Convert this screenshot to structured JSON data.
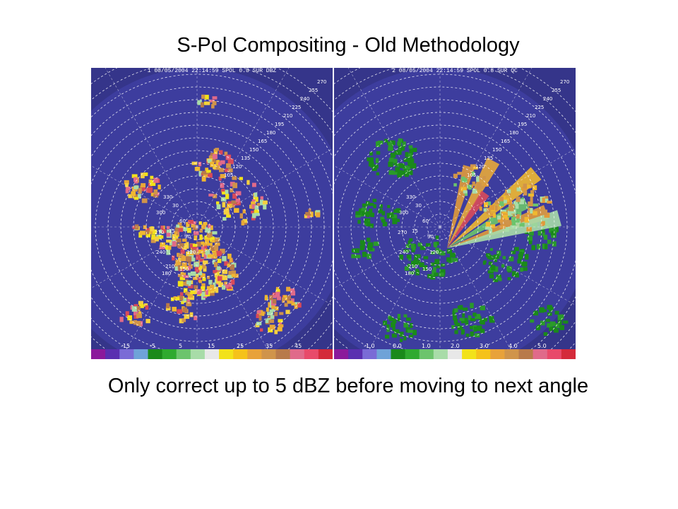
{
  "slide": {
    "title": "S-Pol Compositing - Old Methodology",
    "caption": "Only correct up to 5 dBZ before moving to next angle"
  },
  "panels": [
    {
      "id": "left",
      "header": "1 08/05/2004 22:14:59 SPOL 0.8 SUR DBZ",
      "range_labels": [
        "270",
        "255",
        "240",
        "225",
        "210",
        "195",
        "180",
        "165",
        "150",
        "135",
        "120",
        "105"
      ],
      "azimuth_labels": [
        "330",
        "300",
        "270",
        "240",
        "210",
        "180",
        "150",
        "120",
        "90",
        "60",
        "30",
        "15"
      ],
      "colorbar_ticks": [
        "-15",
        "-5",
        "5",
        "15",
        "25",
        "35",
        "45"
      ],
      "colorbar_colors": [
        "#8b1a9b",
        "#5a2fb0",
        "#7a6bd6",
        "#6fa3d8",
        "#1a8a1a",
        "#2faa2f",
        "#6cc46c",
        "#a8dca8",
        "#e8e8e8",
        "#f2e21a",
        "#f5c21a",
        "#e8a23a",
        "#d0944a",
        "#b87a4a",
        "#e06a8a",
        "#e84a6a",
        "#d42a3a"
      ]
    },
    {
      "id": "right",
      "header": "2 08/05/2004 22:14:59 SPOL 0.8 SUR QC",
      "range_labels": [
        "270",
        "255",
        "240",
        "225",
        "210",
        "195",
        "180",
        "165",
        "150",
        "135",
        "120",
        "105"
      ],
      "azimuth_labels": [
        "330",
        "300",
        "270",
        "240",
        "210",
        "180",
        "150",
        "120",
        "90",
        "60",
        "30",
        "15"
      ],
      "colorbar_ticks": [
        "-1.0",
        "0.0",
        "1.0",
        "2.0",
        "3.0",
        "4.0",
        "5.0"
      ],
      "colorbar_colors": [
        "#8b1a9b",
        "#5a2fb0",
        "#7a6bd6",
        "#6fa3d8",
        "#1a8a1a",
        "#2faa2f",
        "#6cc46c",
        "#a8dca8",
        "#e8e8e8",
        "#f2e21a",
        "#f5c21a",
        "#e8a23a",
        "#d0944a",
        "#b87a4a",
        "#e06a8a",
        "#e84a6a",
        "#d42a3a"
      ]
    }
  ],
  "colors": {
    "background": "#35358a",
    "disk": "#3d3d9e",
    "echo_yellow": "#f0b830",
    "echo_orange": "#e09a3a",
    "echo_red": "#d84a5a",
    "qc_green": "#1a8a1a"
  }
}
